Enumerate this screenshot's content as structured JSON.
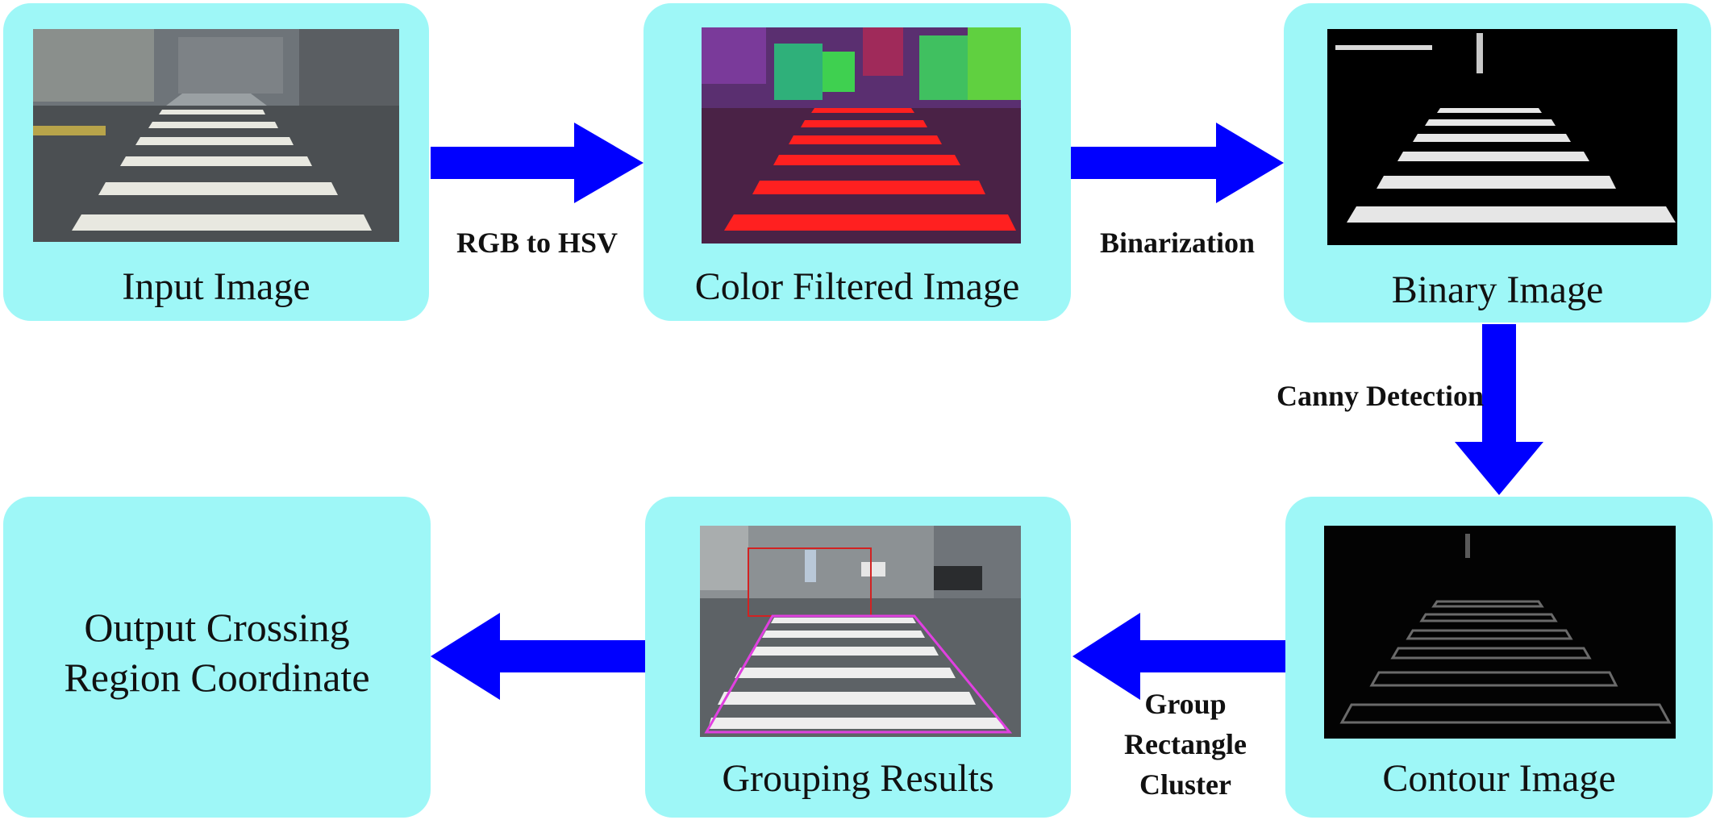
{
  "colors": {
    "box_fill": "#9ef7f7",
    "arrow_fill": "#0000ff",
    "outline_red": "#d22222",
    "outline_magenta": "#e040e0"
  },
  "nodes": {
    "input": {
      "label": "Input Image"
    },
    "color_filtered": {
      "label": "Color Filtered Image"
    },
    "binary": {
      "label": "Binary Image"
    },
    "contour": {
      "label": "Contour Image"
    },
    "grouping": {
      "label": "Grouping Results"
    },
    "output": {
      "label_line1": "Output Crossing",
      "label_line2": "Region Coordinate"
    }
  },
  "edges": {
    "rgb_to_hsv": "RGB to HSV",
    "binarization": "Binarization",
    "canny": "Canny Detection",
    "group_line1": "Group",
    "group_line2": "Rectangle",
    "group_line3": "Cluster"
  },
  "icons": [
    "arrow-right-icon",
    "arrow-down-icon",
    "arrow-left-icon"
  ]
}
